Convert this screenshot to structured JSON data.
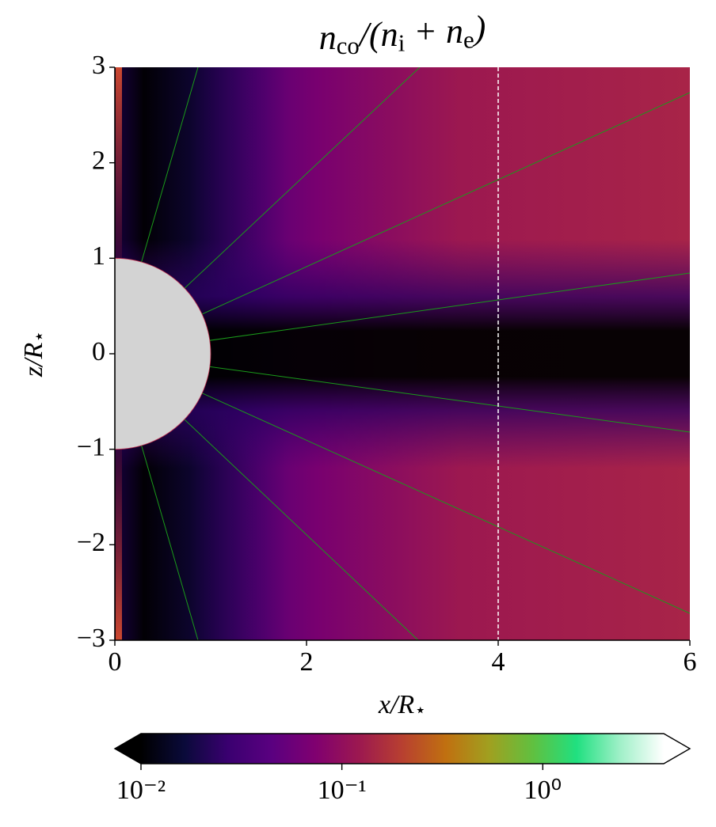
{
  "chart_data": {
    "type": "heatmap",
    "title": [
      "n",
      "co",
      "/(n",
      "i",
      " + n",
      "e",
      ")"
    ],
    "xlabel": [
      "x/R",
      "⋆"
    ],
    "ylabel": [
      "z/R",
      "⋆"
    ],
    "xlim": [
      0,
      6
    ],
    "xticks": [
      0,
      2,
      4,
      6
    ],
    "ylim": [
      -3,
      3
    ],
    "yticks": [
      -3,
      -2,
      -1,
      0,
      1,
      2,
      3
    ],
    "star_radius": 1,
    "vline_x": 4,
    "colorbar": {
      "scale": "log",
      "lim": [
        0.01,
        4
      ],
      "ticks": [
        {
          "value": 0.01,
          "label": "10⁻²"
        },
        {
          "value": 0.1,
          "label": "10⁻¹"
        },
        {
          "value": 1,
          "label": "10⁰"
        }
      ],
      "extend": "both",
      "colormap": [
        "#000000",
        "#0a0a3a",
        "#3a0070",
        "#5a0080",
        "#800070",
        "#9c1850",
        "#b84030",
        "#c07010",
        "#a0a020",
        "#60c040",
        "#20e080",
        "#a0f0c8",
        "#ffffff"
      ]
    }
  }
}
